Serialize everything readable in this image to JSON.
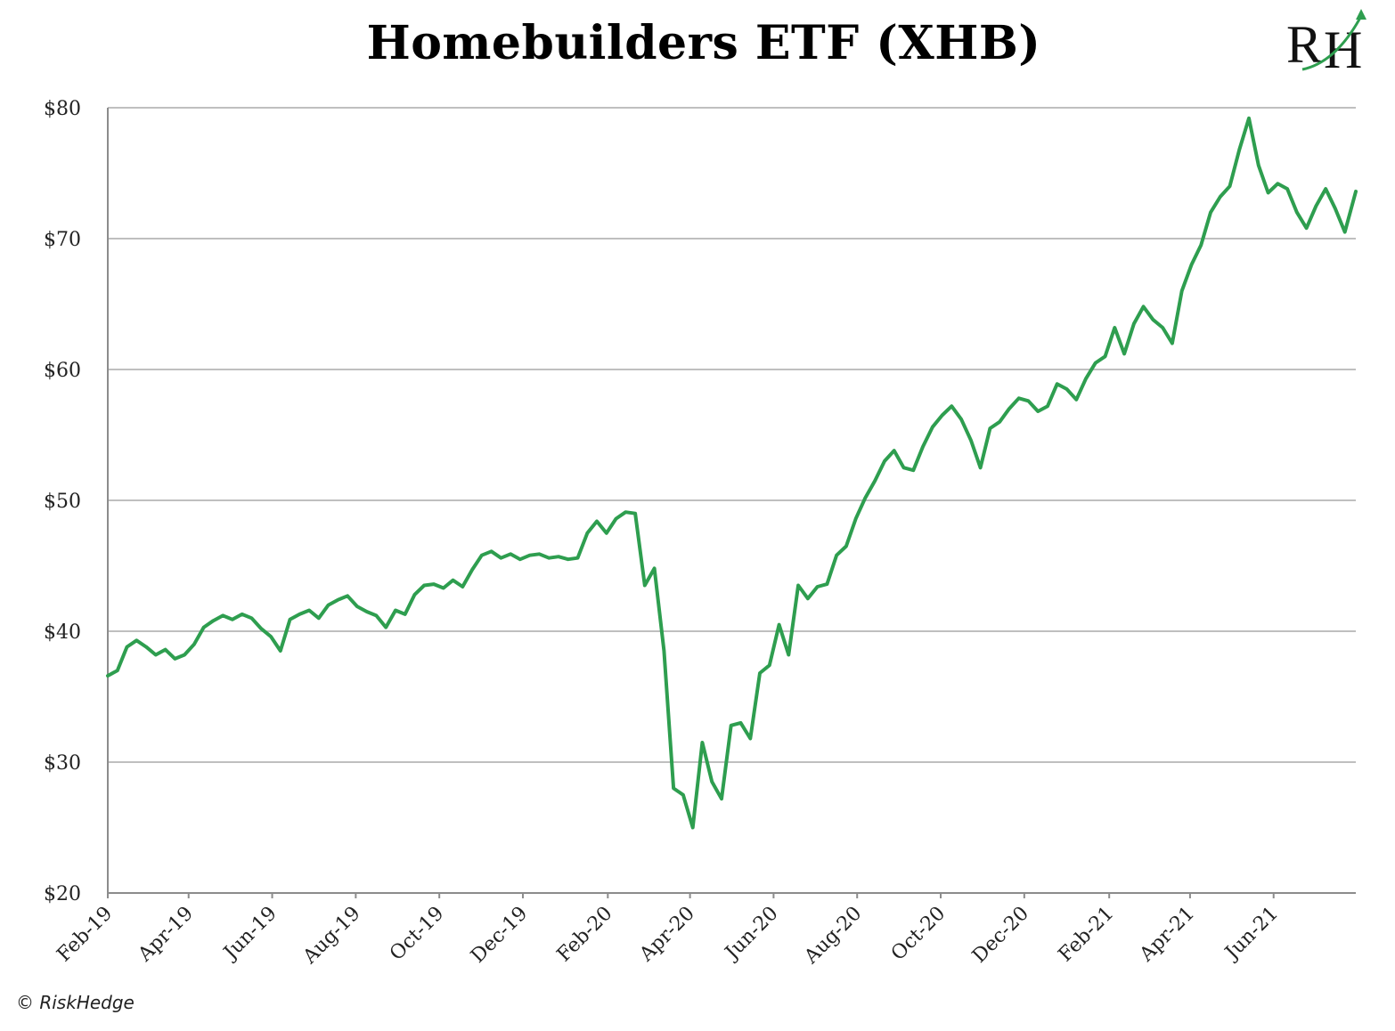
{
  "copyright": "© RiskHedge",
  "logo": {
    "text": "RH",
    "arrow_color": "#2e9e4f"
  },
  "colors": {
    "line": "#2e9e4f",
    "grid": "#bfbfbf",
    "axis": "#8c8c8c"
  },
  "chart_data": {
    "type": "line",
    "title": "Homebuilders ETF (XHB)",
    "xlabel": "",
    "ylabel": "",
    "ylim": [
      20,
      80
    ],
    "y_ticks": [
      20,
      30,
      40,
      50,
      60,
      70,
      80
    ],
    "y_tick_labels": [
      "$20",
      "$30",
      "$40",
      "$50",
      "$60",
      "$70",
      "$80"
    ],
    "x_range": [
      "2019-02-01",
      "2021-07-31"
    ],
    "x_ticks": [
      {
        "date": "2019-02-01",
        "label": "Feb-19"
      },
      {
        "date": "2019-04-01",
        "label": "Apr-19"
      },
      {
        "date": "2019-06-01",
        "label": "Jun-19"
      },
      {
        "date": "2019-08-01",
        "label": "Aug-19"
      },
      {
        "date": "2019-10-01",
        "label": "Oct-19"
      },
      {
        "date": "2019-12-01",
        "label": "Dec-19"
      },
      {
        "date": "2020-02-01",
        "label": "Feb-20"
      },
      {
        "date": "2020-04-01",
        "label": "Apr-20"
      },
      {
        "date": "2020-06-01",
        "label": "Jun-20"
      },
      {
        "date": "2020-08-01",
        "label": "Aug-20"
      },
      {
        "date": "2020-10-01",
        "label": "Oct-20"
      },
      {
        "date": "2020-12-01",
        "label": "Dec-20"
      },
      {
        "date": "2021-02-01",
        "label": "Feb-21"
      },
      {
        "date": "2021-04-01",
        "label": "Apr-21"
      },
      {
        "date": "2021-06-01",
        "label": "Jun-21"
      }
    ],
    "grid": "horizontal",
    "series": [
      {
        "color": "#2e9e4f",
        "points": [
          [
            "2019-02-01",
            36.6
          ],
          [
            "2019-02-08",
            37.0
          ],
          [
            "2019-02-15",
            38.8
          ],
          [
            "2019-02-22",
            39.3
          ],
          [
            "2019-03-01",
            38.8
          ],
          [
            "2019-03-08",
            38.2
          ],
          [
            "2019-03-15",
            38.6
          ],
          [
            "2019-03-22",
            37.9
          ],
          [
            "2019-03-29",
            38.2
          ],
          [
            "2019-04-05",
            39.0
          ],
          [
            "2019-04-12",
            40.3
          ],
          [
            "2019-04-19",
            40.8
          ],
          [
            "2019-04-26",
            41.2
          ],
          [
            "2019-05-03",
            40.9
          ],
          [
            "2019-05-10",
            41.3
          ],
          [
            "2019-05-17",
            41.0
          ],
          [
            "2019-05-24",
            40.2
          ],
          [
            "2019-05-31",
            39.6
          ],
          [
            "2019-06-07",
            38.5
          ],
          [
            "2019-06-14",
            40.9
          ],
          [
            "2019-06-21",
            41.3
          ],
          [
            "2019-06-28",
            41.6
          ],
          [
            "2019-07-05",
            41.0
          ],
          [
            "2019-07-12",
            42.0
          ],
          [
            "2019-07-19",
            42.4
          ],
          [
            "2019-07-26",
            42.7
          ],
          [
            "2019-08-02",
            41.9
          ],
          [
            "2019-08-09",
            41.5
          ],
          [
            "2019-08-16",
            41.2
          ],
          [
            "2019-08-23",
            40.3
          ],
          [
            "2019-08-30",
            41.6
          ],
          [
            "2019-09-06",
            41.3
          ],
          [
            "2019-09-13",
            42.8
          ],
          [
            "2019-09-20",
            43.5
          ],
          [
            "2019-09-27",
            43.6
          ],
          [
            "2019-10-04",
            43.3
          ],
          [
            "2019-10-11",
            43.9
          ],
          [
            "2019-10-18",
            43.4
          ],
          [
            "2019-10-25",
            44.7
          ],
          [
            "2019-11-01",
            45.8
          ],
          [
            "2019-11-08",
            46.1
          ],
          [
            "2019-11-15",
            45.6
          ],
          [
            "2019-11-22",
            45.9
          ],
          [
            "2019-11-29",
            45.5
          ],
          [
            "2019-12-06",
            45.8
          ],
          [
            "2019-12-13",
            45.9
          ],
          [
            "2019-12-20",
            45.6
          ],
          [
            "2019-12-27",
            45.7
          ],
          [
            "2020-01-03",
            45.5
          ],
          [
            "2020-01-10",
            45.6
          ],
          [
            "2020-01-17",
            47.5
          ],
          [
            "2020-01-24",
            48.4
          ],
          [
            "2020-01-31",
            47.5
          ],
          [
            "2020-02-07",
            48.6
          ],
          [
            "2020-02-14",
            49.1
          ],
          [
            "2020-02-21",
            49.0
          ],
          [
            "2020-02-28",
            43.5
          ],
          [
            "2020-03-06",
            44.8
          ],
          [
            "2020-03-13",
            38.5
          ],
          [
            "2020-03-20",
            28.0
          ],
          [
            "2020-03-27",
            27.5
          ],
          [
            "2020-04-03",
            25.0
          ],
          [
            "2020-04-10",
            31.5
          ],
          [
            "2020-04-17",
            28.5
          ],
          [
            "2020-04-24",
            27.2
          ],
          [
            "2020-05-01",
            32.8
          ],
          [
            "2020-05-08",
            33.0
          ],
          [
            "2020-05-15",
            31.8
          ],
          [
            "2020-05-22",
            36.8
          ],
          [
            "2020-05-29",
            37.4
          ],
          [
            "2020-06-05",
            40.5
          ],
          [
            "2020-06-12",
            38.2
          ],
          [
            "2020-06-19",
            43.5
          ],
          [
            "2020-06-26",
            42.5
          ],
          [
            "2020-07-03",
            43.4
          ],
          [
            "2020-07-10",
            43.6
          ],
          [
            "2020-07-17",
            45.8
          ],
          [
            "2020-07-24",
            46.5
          ],
          [
            "2020-07-31",
            48.6
          ],
          [
            "2020-08-07",
            50.2
          ],
          [
            "2020-08-14",
            51.5
          ],
          [
            "2020-08-21",
            53.0
          ],
          [
            "2020-08-28",
            53.8
          ],
          [
            "2020-09-04",
            52.5
          ],
          [
            "2020-09-11",
            52.3
          ],
          [
            "2020-09-18",
            54.1
          ],
          [
            "2020-09-25",
            55.6
          ],
          [
            "2020-10-02",
            56.5
          ],
          [
            "2020-10-09",
            57.2
          ],
          [
            "2020-10-16",
            56.2
          ],
          [
            "2020-10-23",
            54.6
          ],
          [
            "2020-10-30",
            52.5
          ],
          [
            "2020-11-06",
            55.5
          ],
          [
            "2020-11-13",
            56.0
          ],
          [
            "2020-11-20",
            57.0
          ],
          [
            "2020-11-27",
            57.8
          ],
          [
            "2020-12-04",
            57.6
          ],
          [
            "2020-12-11",
            56.8
          ],
          [
            "2020-12-18",
            57.2
          ],
          [
            "2020-12-25",
            58.9
          ],
          [
            "2021-01-01",
            58.5
          ],
          [
            "2021-01-08",
            57.7
          ],
          [
            "2021-01-15",
            59.3
          ],
          [
            "2021-01-22",
            60.5
          ],
          [
            "2021-01-29",
            61.0
          ],
          [
            "2021-02-05",
            63.2
          ],
          [
            "2021-02-12",
            61.2
          ],
          [
            "2021-02-19",
            63.5
          ],
          [
            "2021-02-26",
            64.8
          ],
          [
            "2021-03-05",
            63.8
          ],
          [
            "2021-03-12",
            63.2
          ],
          [
            "2021-03-19",
            62.0
          ],
          [
            "2021-03-26",
            66.0
          ],
          [
            "2021-04-02",
            68.0
          ],
          [
            "2021-04-09",
            69.5
          ],
          [
            "2021-04-16",
            72.0
          ],
          [
            "2021-04-23",
            73.2
          ],
          [
            "2021-04-30",
            74.0
          ],
          [
            "2021-05-07",
            76.8
          ],
          [
            "2021-05-14",
            79.2
          ],
          [
            "2021-05-21",
            75.6
          ],
          [
            "2021-05-28",
            73.5
          ],
          [
            "2021-06-04",
            74.2
          ],
          [
            "2021-06-11",
            73.8
          ],
          [
            "2021-06-18",
            72.0
          ],
          [
            "2021-06-25",
            70.8
          ],
          [
            "2021-07-02",
            72.5
          ],
          [
            "2021-07-09",
            73.8
          ],
          [
            "2021-07-16",
            72.3
          ],
          [
            "2021-07-23",
            70.5
          ],
          [
            "2021-07-31",
            73.6
          ]
        ]
      }
    ]
  }
}
